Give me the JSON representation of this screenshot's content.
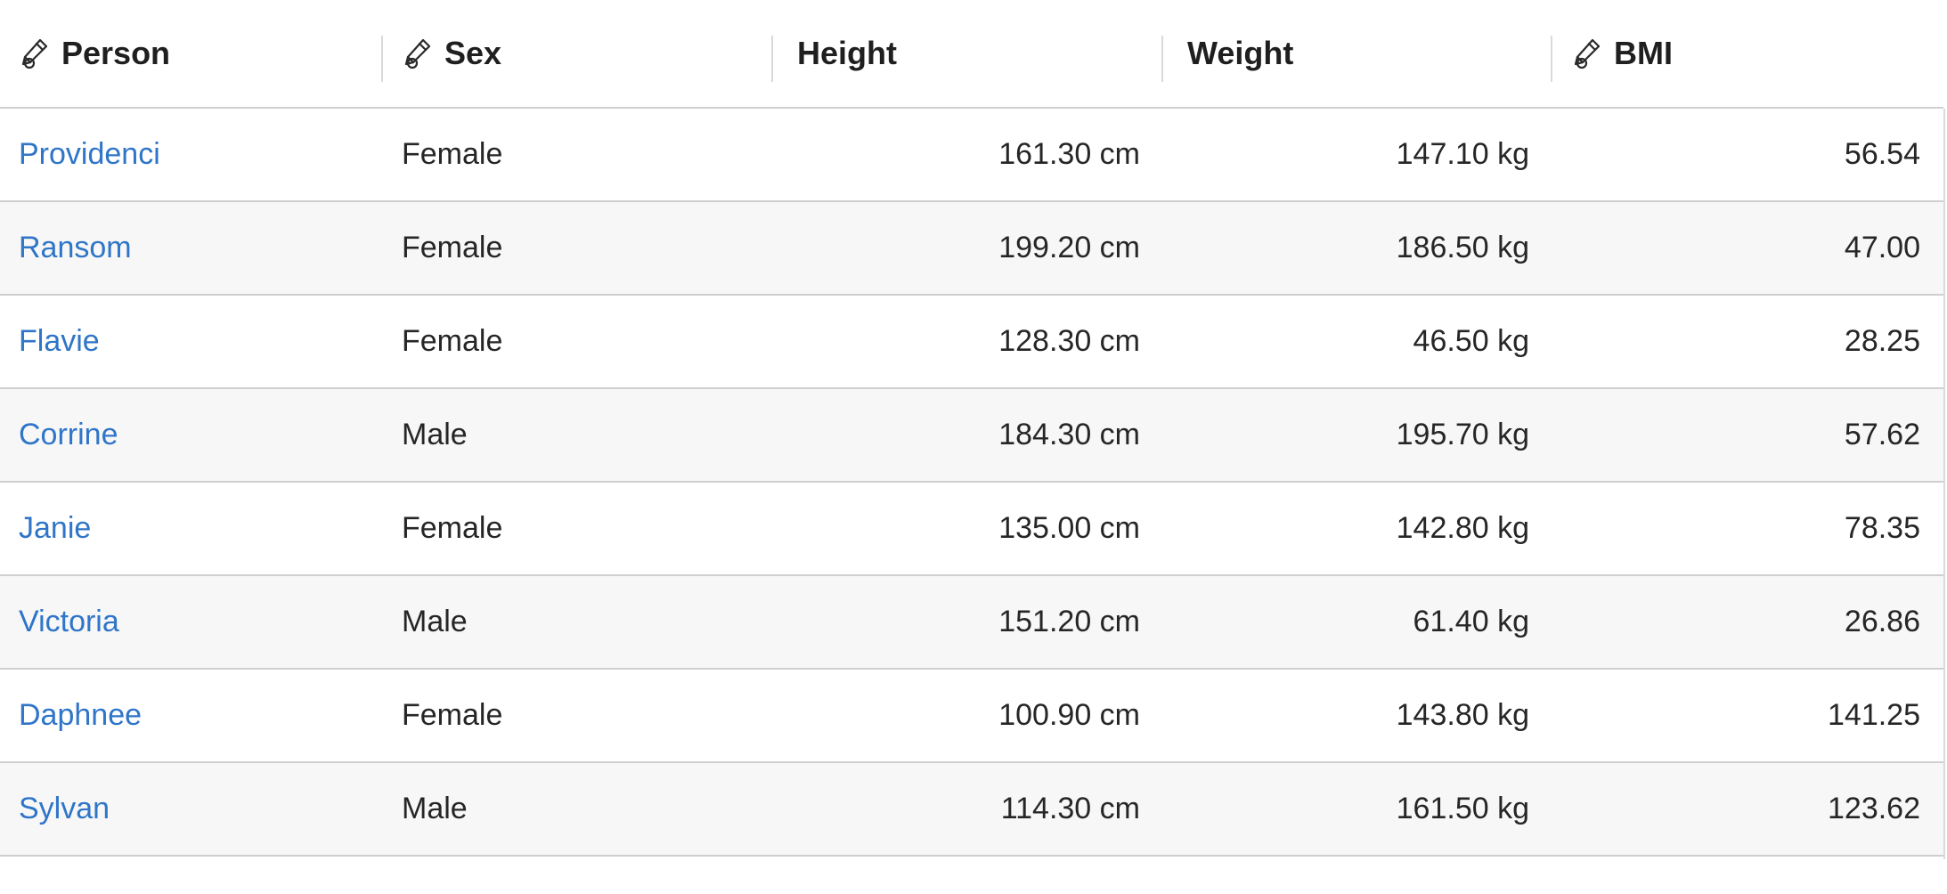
{
  "columns": [
    {
      "label": "Person",
      "editable": true
    },
    {
      "label": "Sex",
      "editable": true
    },
    {
      "label": "Height",
      "editable": false
    },
    {
      "label": "Weight",
      "editable": false
    },
    {
      "label": "BMI",
      "editable": true
    }
  ],
  "rows": [
    {
      "person": "Providenci",
      "sex": "Female",
      "height": "161.30 cm",
      "weight": "147.10 kg",
      "bmi": "56.54"
    },
    {
      "person": "Ransom",
      "sex": "Female",
      "height": "199.20 cm",
      "weight": "186.50 kg",
      "bmi": "47.00"
    },
    {
      "person": "Flavie",
      "sex": "Female",
      "height": "128.30 cm",
      "weight": "46.50 kg",
      "bmi": "28.25"
    },
    {
      "person": "Corrine",
      "sex": "Male",
      "height": "184.30 cm",
      "weight": "195.70 kg",
      "bmi": "57.62"
    },
    {
      "person": "Janie",
      "sex": "Female",
      "height": "135.00 cm",
      "weight": "142.80 kg",
      "bmi": "78.35"
    },
    {
      "person": "Victoria",
      "sex": "Male",
      "height": "151.20 cm",
      "weight": "61.40 kg",
      "bmi": "26.86"
    },
    {
      "person": "Daphnee",
      "sex": "Female",
      "height": "100.90 cm",
      "weight": "143.80 kg",
      "bmi": "141.25"
    },
    {
      "person": "Sylvan",
      "sex": "Male",
      "height": "114.30 cm",
      "weight": "161.50 kg",
      "bmi": "123.62"
    }
  ],
  "icons": {
    "edit": "edit-pen-icon"
  },
  "colors": {
    "link": "#2f75c8",
    "row_alt": "#f7f7f7",
    "border": "#cfcfcf",
    "text": "#262626"
  }
}
